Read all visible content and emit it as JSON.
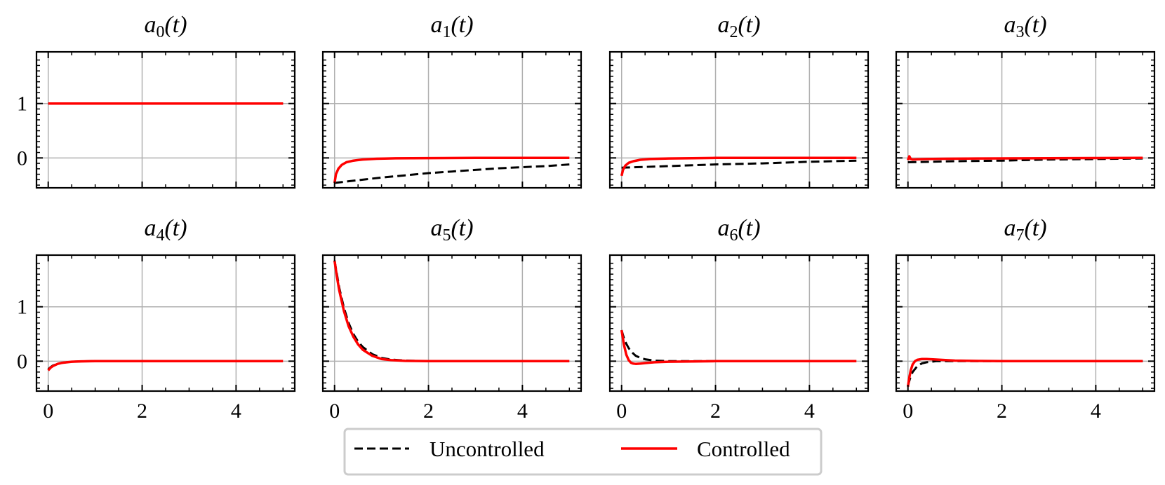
{
  "chart_data": {
    "type": "line",
    "layout": "2x4 small multiples, shared x and y axes",
    "xlim": [
      -0.25,
      5.25
    ],
    "ylim": [
      -0.55,
      1.95
    ],
    "xticks": [
      0,
      2,
      4
    ],
    "yticks": [
      0,
      1
    ],
    "grid": true,
    "legend": {
      "placement": "bottom-center",
      "entries": [
        {
          "label": "Uncontrolled",
          "style": "dashed",
          "color": "#000000"
        },
        {
          "label": "Controlled",
          "style": "solid",
          "color": "#ff0000"
        }
      ]
    },
    "colors": {
      "uncontrolled": "#000000",
      "controlled": "#ff0000",
      "grid": "#b0b0b0"
    },
    "panels": [
      {
        "title_base": "a",
        "title_sub": "0",
        "title_arg": "(t)",
        "series": [
          {
            "name": "Uncontrolled",
            "x": [
              0,
              5
            ],
            "y": [
              1.0,
              1.0
            ]
          },
          {
            "name": "Controlled",
            "x": [
              0,
              5
            ],
            "y": [
              1.0,
              1.0
            ]
          }
        ]
      },
      {
        "title_base": "a",
        "title_sub": "1",
        "title_arg": "(t)",
        "series": [
          {
            "name": "Uncontrolled",
            "x": [
              0,
              0.5,
              1,
              1.5,
              2,
              2.5,
              3,
              3.5,
              4,
              4.5,
              5
            ],
            "y": [
              -0.46,
              -0.41,
              -0.36,
              -0.32,
              -0.28,
              -0.25,
              -0.22,
              -0.19,
              -0.17,
              -0.15,
              -0.12
            ]
          },
          {
            "name": "Controlled",
            "x": [
              0,
              0.03,
              0.08,
              0.15,
              0.25,
              0.4,
              0.6,
              0.9,
              1.3,
              2,
              3,
              4,
              5
            ],
            "y": [
              -0.46,
              -0.3,
              -0.2,
              -0.13,
              -0.08,
              -0.05,
              -0.03,
              -0.015,
              -0.008,
              -0.003,
              0,
              0,
              0
            ]
          }
        ]
      },
      {
        "title_base": "a",
        "title_sub": "2",
        "title_arg": "(t)",
        "series": [
          {
            "name": "Uncontrolled",
            "x": [
              0,
              1,
              2,
              3,
              4,
              5
            ],
            "y": [
              -0.18,
              -0.15,
              -0.12,
              -0.1,
              -0.07,
              -0.05
            ]
          },
          {
            "name": "Controlled",
            "x": [
              0,
              0.03,
              0.08,
              0.15,
              0.25,
              0.4,
              0.6,
              1,
              1.5,
              2,
              3,
              4,
              5
            ],
            "y": [
              -0.33,
              -0.22,
              -0.14,
              -0.09,
              -0.06,
              -0.035,
              -0.02,
              -0.01,
              -0.005,
              0,
              0,
              0,
              0
            ]
          }
        ]
      },
      {
        "title_base": "a",
        "title_sub": "3",
        "title_arg": "(t)",
        "series": [
          {
            "name": "Uncontrolled",
            "x": [
              0,
              1,
              2,
              3,
              4,
              5
            ],
            "y": [
              -0.08,
              -0.06,
              -0.05,
              -0.03,
              -0.02,
              -0.01
            ]
          },
          {
            "name": "Controlled",
            "x": [
              0,
              0.03,
              0.06,
              0.1,
              0.2,
              0.4,
              0.8,
              1.5,
              3,
              5
            ],
            "y": [
              -0.04,
              0.03,
              -0.02,
              -0.03,
              -0.025,
              -0.02,
              -0.015,
              -0.01,
              -0.005,
              0
            ]
          }
        ]
      },
      {
        "title_base": "a",
        "title_sub": "4",
        "title_arg": "(t)",
        "series": [
          {
            "name": "Uncontrolled",
            "x": [
              0,
              0.05,
              0.1,
              0.2,
              0.3,
              0.5,
              0.7,
              1,
              2,
              3,
              4,
              5
            ],
            "y": [
              -0.15,
              -0.11,
              -0.08,
              -0.05,
              -0.03,
              -0.01,
              -0.004,
              0,
              0,
              0,
              0,
              0
            ]
          },
          {
            "name": "Controlled",
            "x": [
              0,
              0.05,
              0.1,
              0.2,
              0.3,
              0.5,
              0.7,
              1,
              2,
              3,
              4,
              5
            ],
            "y": [
              -0.17,
              -0.12,
              -0.09,
              -0.05,
              -0.03,
              -0.01,
              -0.004,
              0,
              0,
              0,
              0,
              0
            ]
          }
        ]
      },
      {
        "title_base": "a",
        "title_sub": "5",
        "title_arg": "(t)",
        "series": [
          {
            "name": "Uncontrolled",
            "x": [
              0,
              0.05,
              0.1,
              0.2,
              0.3,
              0.4,
              0.5,
              0.6,
              0.8,
              1,
              1.2,
              1.5,
              2,
              3,
              4,
              5
            ],
            "y": [
              1.85,
              1.6,
              1.35,
              0.98,
              0.7,
              0.5,
              0.36,
              0.26,
              0.13,
              0.06,
              0.03,
              0.01,
              0,
              0,
              0,
              0
            ]
          },
          {
            "name": "Controlled",
            "x": [
              0,
              0.05,
              0.1,
              0.2,
              0.3,
              0.4,
              0.5,
              0.6,
              0.8,
              1,
              1.2,
              1.5,
              2,
              3,
              4,
              5
            ],
            "y": [
              1.85,
              1.55,
              1.3,
              0.92,
              0.64,
              0.45,
              0.31,
              0.21,
              0.1,
              0.04,
              0.02,
              0.005,
              0,
              0,
              0,
              0
            ]
          }
        ]
      },
      {
        "title_base": "a",
        "title_sub": "6",
        "title_arg": "(t)",
        "series": [
          {
            "name": "Uncontrolled",
            "x": [
              0,
              0.05,
              0.1,
              0.15,
              0.2,
              0.3,
              0.4,
              0.5,
              0.7,
              1,
              1.5,
              2,
              3,
              4,
              5
            ],
            "y": [
              0.57,
              0.42,
              0.32,
              0.24,
              0.18,
              0.1,
              0.06,
              0.035,
              0.01,
              0,
              0,
              0,
              0,
              0,
              0
            ]
          },
          {
            "name": "Controlled",
            "x": [
              0,
              0.05,
              0.1,
              0.15,
              0.2,
              0.25,
              0.3,
              0.4,
              0.5,
              0.7,
              1,
              1.5,
              2,
              3,
              4,
              5
            ],
            "y": [
              0.57,
              0.3,
              0.12,
              0.02,
              -0.03,
              -0.045,
              -0.05,
              -0.045,
              -0.035,
              -0.02,
              -0.01,
              -0.005,
              0,
              0,
              0,
              0
            ]
          }
        ]
      },
      {
        "title_base": "a",
        "title_sub": "7",
        "title_arg": "(t)",
        "series": [
          {
            "name": "Uncontrolled",
            "x": [
              0,
              0.05,
              0.1,
              0.2,
              0.3,
              0.4,
              0.6,
              0.8,
              1,
              2,
              3,
              4,
              5
            ],
            "y": [
              -0.45,
              -0.3,
              -0.2,
              -0.09,
              -0.04,
              -0.02,
              0,
              0,
              0,
              0,
              0,
              0,
              0
            ]
          },
          {
            "name": "Controlled",
            "x": [
              0,
              0.03,
              0.06,
              0.1,
              0.15,
              0.2,
              0.3,
              0.4,
              0.6,
              0.8,
              1,
              1.5,
              2,
              3,
              4,
              5
            ],
            "y": [
              -0.47,
              -0.3,
              -0.17,
              -0.06,
              0.0,
              0.025,
              0.04,
              0.04,
              0.03,
              0.02,
              0.01,
              0.004,
              0,
              0,
              0,
              0
            ]
          }
        ]
      }
    ]
  }
}
